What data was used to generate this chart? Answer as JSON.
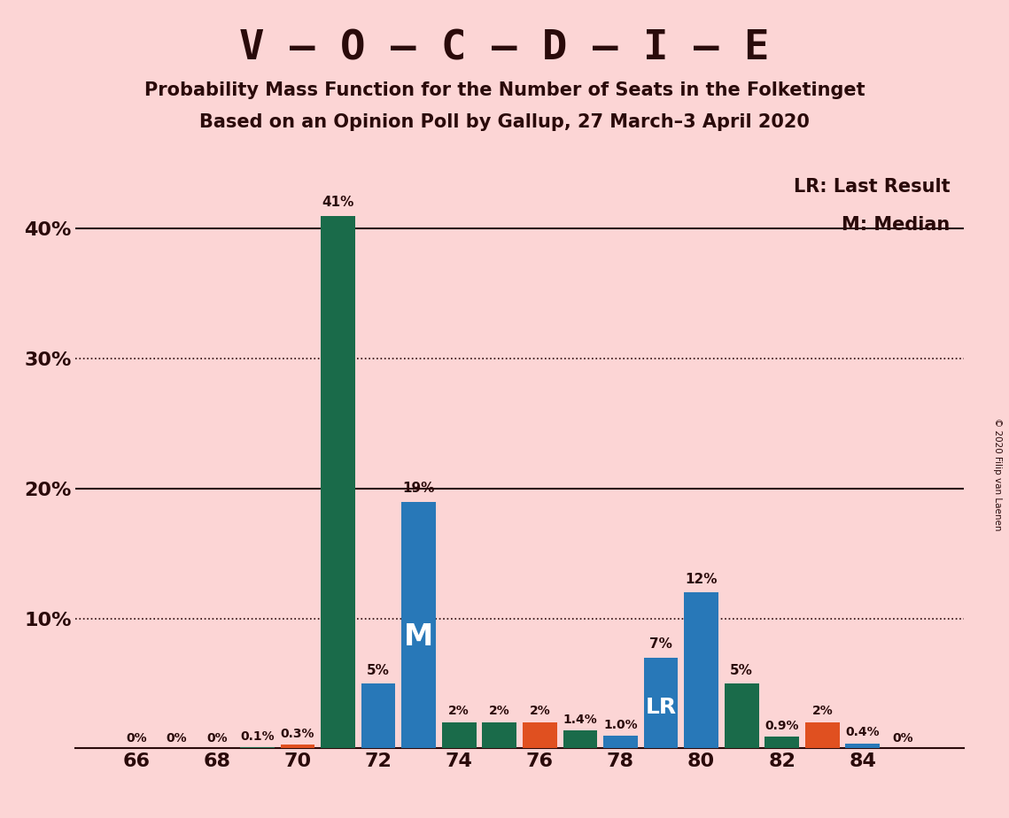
{
  "title": "V – O – C – D – I – E",
  "subtitle1": "Probability Mass Function for the Number of Seats in the Folketinget",
  "subtitle2": "Based on an Opinion Poll by Gallup, 27 March–3 April 2020",
  "copyright": "© 2020 Filip van Laenen",
  "background_color": "#fcd5d5",
  "text_color": "#2a0a0a",
  "legend_lr": "LR: Last Result",
  "legend_m": "M: Median",
  "bar_width": 0.85,
  "xlim": [
    64.5,
    86.5
  ],
  "ylim": [
    0,
    45
  ],
  "xticks": [
    66,
    68,
    70,
    72,
    74,
    76,
    78,
    80,
    82,
    84
  ],
  "yticks": [
    0,
    10,
    20,
    30,
    40
  ],
  "yticklabels": [
    "",
    "10%",
    "20%",
    "30%",
    "40%"
  ],
  "seat_data": [
    {
      "seat": 66,
      "value": 0.0,
      "color": "#2878b8",
      "label": "0%"
    },
    {
      "seat": 67,
      "value": 0.0,
      "color": "#2878b8",
      "label": "0%"
    },
    {
      "seat": 68,
      "value": 0.0,
      "color": "#1a6b4a",
      "label": "0%"
    },
    {
      "seat": 69,
      "value": 0.1,
      "color": "#1a6b4a",
      "label": "0.1%"
    },
    {
      "seat": 70,
      "value": 0.3,
      "color": "#e05020",
      "label": "0.3%"
    },
    {
      "seat": 71,
      "value": 41.0,
      "color": "#1a6b4a",
      "label": "41%"
    },
    {
      "seat": 72,
      "value": 5.0,
      "color": "#2878b8",
      "label": "5%"
    },
    {
      "seat": 73,
      "value": 19.0,
      "color": "#2878b8",
      "label": "19%"
    },
    {
      "seat": 74,
      "value": 2.0,
      "color": "#1a6b4a",
      "label": "2%"
    },
    {
      "seat": 75,
      "value": 2.0,
      "color": "#1a6b4a",
      "label": "2%"
    },
    {
      "seat": 76,
      "value": 2.0,
      "color": "#e05020",
      "label": "2%"
    },
    {
      "seat": 77,
      "value": 1.4,
      "color": "#1a6b4a",
      "label": "1.4%"
    },
    {
      "seat": 78,
      "value": 1.0,
      "color": "#2878b8",
      "label": "1.0%"
    },
    {
      "seat": 79,
      "value": 7.0,
      "color": "#2878b8",
      "label": "7%"
    },
    {
      "seat": 80,
      "value": 12.0,
      "color": "#2878b8",
      "label": "12%"
    },
    {
      "seat": 81,
      "value": 5.0,
      "color": "#1a6b4a",
      "label": "5%"
    },
    {
      "seat": 82,
      "value": 0.9,
      "color": "#1a6b4a",
      "label": "0.9%"
    },
    {
      "seat": 83,
      "value": 2.0,
      "color": "#e05020",
      "label": "2%"
    },
    {
      "seat": 84,
      "value": 0.4,
      "color": "#2878b8",
      "label": "0.4%"
    },
    {
      "seat": 85,
      "value": 0.0,
      "color": "#1a6b4a",
      "label": "0%"
    }
  ],
  "median_seat": 73,
  "lr_seat": 79,
  "solid_lines": [
    20,
    40
  ],
  "dotted_lines": [
    10,
    30
  ]
}
